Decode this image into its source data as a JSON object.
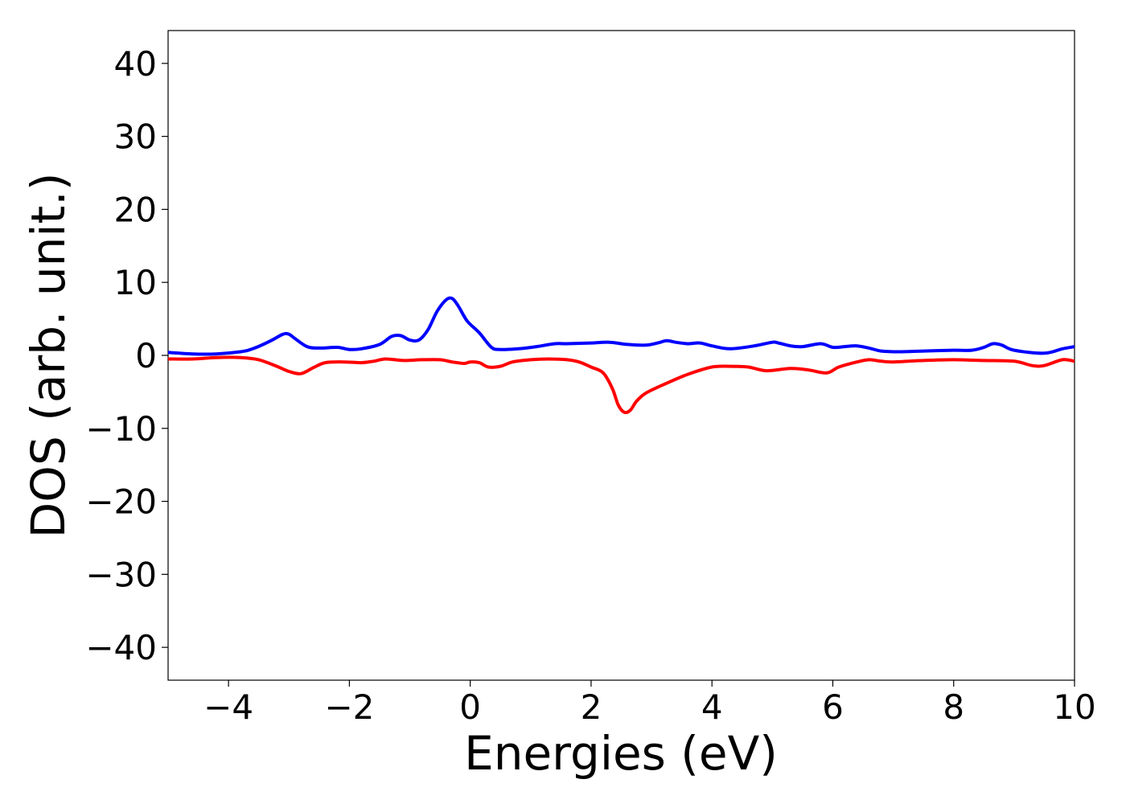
{
  "chart_data": {
    "type": "line",
    "title": "",
    "xlabel": "Energies (eV)",
    "ylabel": "DOS (arb. unit.)",
    "xlim": [
      -5,
      10
    ],
    "ylim": [
      -44.5,
      44.5
    ],
    "grid": false,
    "xticks": [
      {
        "value": -4,
        "label": "−4"
      },
      {
        "value": -2,
        "label": "−2"
      },
      {
        "value": 0,
        "label": "0"
      },
      {
        "value": 2,
        "label": "2"
      },
      {
        "value": 4,
        "label": "4"
      },
      {
        "value": 6,
        "label": "6"
      },
      {
        "value": 8,
        "label": "8"
      },
      {
        "value": 10,
        "label": "10"
      }
    ],
    "yticks": [
      {
        "value": -40,
        "label": "−40"
      },
      {
        "value": -30,
        "label": "−30"
      },
      {
        "value": -20,
        "label": "−20"
      },
      {
        "value": -10,
        "label": "−10"
      },
      {
        "value": 0,
        "label": "0"
      },
      {
        "value": 10,
        "label": "10"
      },
      {
        "value": 20,
        "label": "20"
      },
      {
        "value": 30,
        "label": "30"
      },
      {
        "value": 40,
        "label": "40"
      }
    ],
    "series": [
      {
        "color": "#0000ff",
        "x": [
          -5.0,
          -4.6,
          -4.2,
          -3.8,
          -3.6,
          -3.3,
          -3.1,
          -3.0,
          -2.9,
          -2.7,
          -2.5,
          -2.2,
          -2.0,
          -1.8,
          -1.5,
          -1.3,
          -1.15,
          -1.0,
          -0.85,
          -0.7,
          -0.55,
          -0.4,
          -0.3,
          -0.2,
          -0.05,
          0.15,
          0.35,
          0.5,
          0.8,
          1.1,
          1.4,
          1.6,
          2.0,
          2.3,
          2.6,
          2.9,
          3.1,
          3.25,
          3.4,
          3.6,
          3.8,
          4.0,
          4.3,
          4.7,
          5.0,
          5.1,
          5.3,
          5.5,
          5.8,
          6.0,
          6.2,
          6.4,
          6.6,
          6.8,
          7.1,
          7.5,
          8.0,
          8.3,
          8.5,
          8.65,
          8.8,
          9.0,
          9.5,
          9.8,
          10.0
        ],
        "y": [
          0.4,
          0.2,
          0.2,
          0.5,
          0.9,
          2.0,
          2.9,
          2.9,
          2.3,
          1.2,
          1.0,
          1.1,
          0.8,
          0.9,
          1.5,
          2.6,
          2.7,
          2.1,
          2.1,
          3.5,
          6.0,
          7.6,
          7.8,
          6.8,
          4.7,
          3.1,
          1.1,
          0.8,
          0.9,
          1.2,
          1.6,
          1.6,
          1.7,
          1.8,
          1.5,
          1.4,
          1.7,
          2.0,
          1.8,
          1.6,
          1.7,
          1.3,
          0.9,
          1.3,
          1.8,
          1.7,
          1.3,
          1.2,
          1.6,
          1.1,
          1.2,
          1.3,
          1.0,
          0.6,
          0.5,
          0.6,
          0.7,
          0.7,
          1.1,
          1.6,
          1.4,
          0.7,
          0.3,
          0.9,
          1.2
        ]
      },
      {
        "color": "#ff0000",
        "x": [
          -5.0,
          -4.6,
          -4.2,
          -3.8,
          -3.5,
          -3.2,
          -3.0,
          -2.8,
          -2.6,
          -2.4,
          -2.1,
          -1.8,
          -1.6,
          -1.4,
          -1.1,
          -0.8,
          -0.5,
          -0.3,
          -0.1,
          0.0,
          0.15,
          0.3,
          0.5,
          0.7,
          1.0,
          1.3,
          1.6,
          1.8,
          2.0,
          2.2,
          2.35,
          2.45,
          2.55,
          2.65,
          2.75,
          2.9,
          3.2,
          3.6,
          4.0,
          4.3,
          4.6,
          4.9,
          5.3,
          5.6,
          5.9,
          6.1,
          6.4,
          6.6,
          6.8,
          7.0,
          7.5,
          8.0,
          8.5,
          9.0,
          9.3,
          9.5,
          9.8,
          10.0
        ],
        "y": [
          -0.5,
          -0.5,
          -0.3,
          -0.3,
          -0.6,
          -1.5,
          -2.2,
          -2.5,
          -1.7,
          -1.0,
          -0.9,
          -1.0,
          -0.8,
          -0.5,
          -0.7,
          -0.6,
          -0.6,
          -0.9,
          -1.1,
          -0.9,
          -1.0,
          -1.6,
          -1.5,
          -0.9,
          -0.6,
          -0.5,
          -0.6,
          -0.9,
          -1.6,
          -2.4,
          -4.5,
          -6.8,
          -7.8,
          -7.5,
          -6.3,
          -5.2,
          -4.0,
          -2.6,
          -1.6,
          -1.5,
          -1.6,
          -2.1,
          -1.8,
          -2.0,
          -2.4,
          -1.6,
          -0.9,
          -0.6,
          -0.8,
          -0.9,
          -0.7,
          -0.6,
          -0.7,
          -0.8,
          -1.4,
          -1.4,
          -0.6,
          -0.8
        ]
      }
    ]
  }
}
